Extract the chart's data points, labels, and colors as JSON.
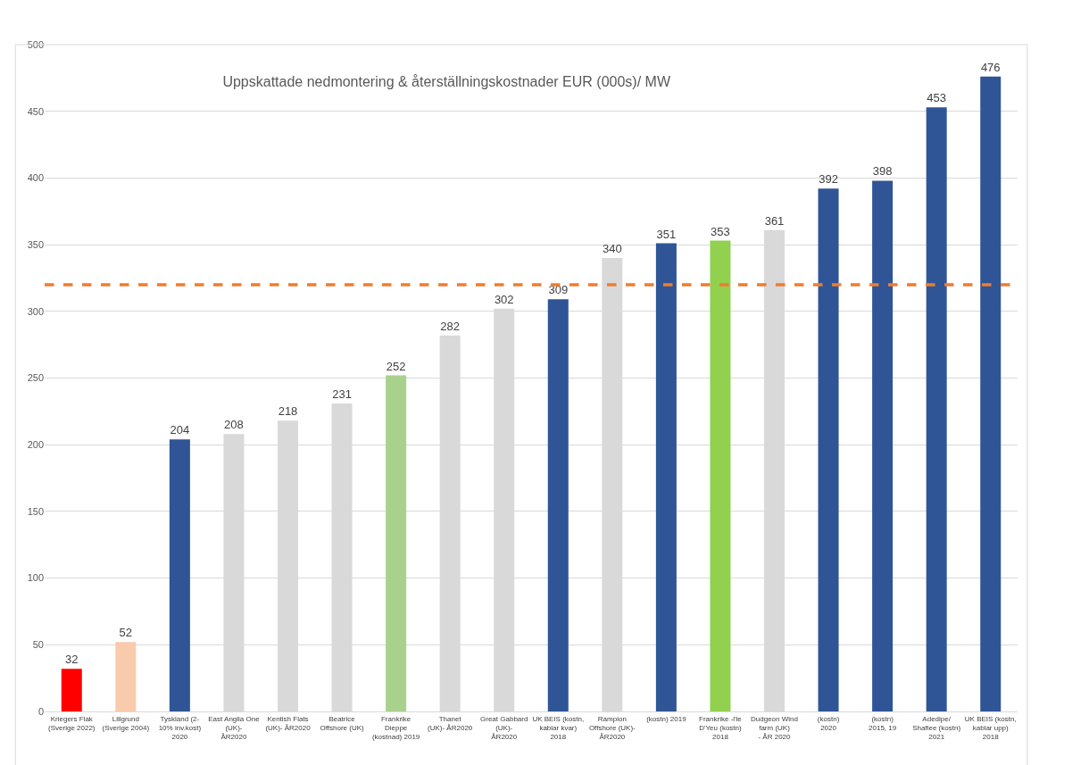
{
  "chart_data": {
    "type": "bar",
    "title": "Uppskattade nedmontering & återställningskostnader EUR (000s)/ MW",
    "categories": [
      "Kriegers Flak\n(Sverige 2022)",
      "Lillgrund\n(Sverige 2004)",
      "Tyskland (2-\n10% inv.kost)\n2020",
      "East Anglia One\n(UK)-\nÅR2020",
      "Kentish Flats\n(UK)- ÅR2020",
      "Beatrice\nOffshore (UK)",
      "Frankrike\nDieppe\n(kostnad) 2019",
      "Thanet\n(UK)- ÅR2020",
      "Great Gabbard\n(UK)-\nÅR2020",
      "UK BEIS (kostn,\nkablar kvar)\n2018",
      "Rampion\nOffshore (UK)-\nÅR2020",
      "(kostn) 2019",
      "Frankrike -l'le\nD'Yeu (kostn)\n2018",
      "Dudgeon Wind\nfarm (UK)\n- ÅR 2020",
      "(kostn)\n2020",
      "(kostn)\n2015, 19",
      "Adedipe/\nShafiee (kostn)\n2021",
      "UK BEIS (kostn,\nkablar upp)\n2018"
    ],
    "values": [
      32,
      52,
      204,
      208,
      218,
      231,
      252,
      282,
      302,
      309,
      340,
      351,
      353,
      361,
      392,
      398,
      453,
      476
    ],
    "colors": [
      "#ff0000",
      "#f8cbad",
      "#2f5597",
      "#d9d9d9",
      "#d9d9d9",
      "#d9d9d9",
      "#a9d18e",
      "#d9d9d9",
      "#d9d9d9",
      "#2f5597",
      "#d9d9d9",
      "#2f5597",
      "#92d050",
      "#d9d9d9",
      "#2f5597",
      "#2f5597",
      "#2f5597",
      "#2f5597"
    ],
    "data_labels": true,
    "ylim": [
      0,
      500
    ],
    "yticks": [
      0,
      50,
      100,
      150,
      200,
      250,
      300,
      350,
      400,
      450,
      500
    ],
    "grid": "y",
    "ref_lines": [
      {
        "axis": "y",
        "value": 320,
        "color": "#ed7d31",
        "line_style": "dashed"
      }
    ]
  }
}
